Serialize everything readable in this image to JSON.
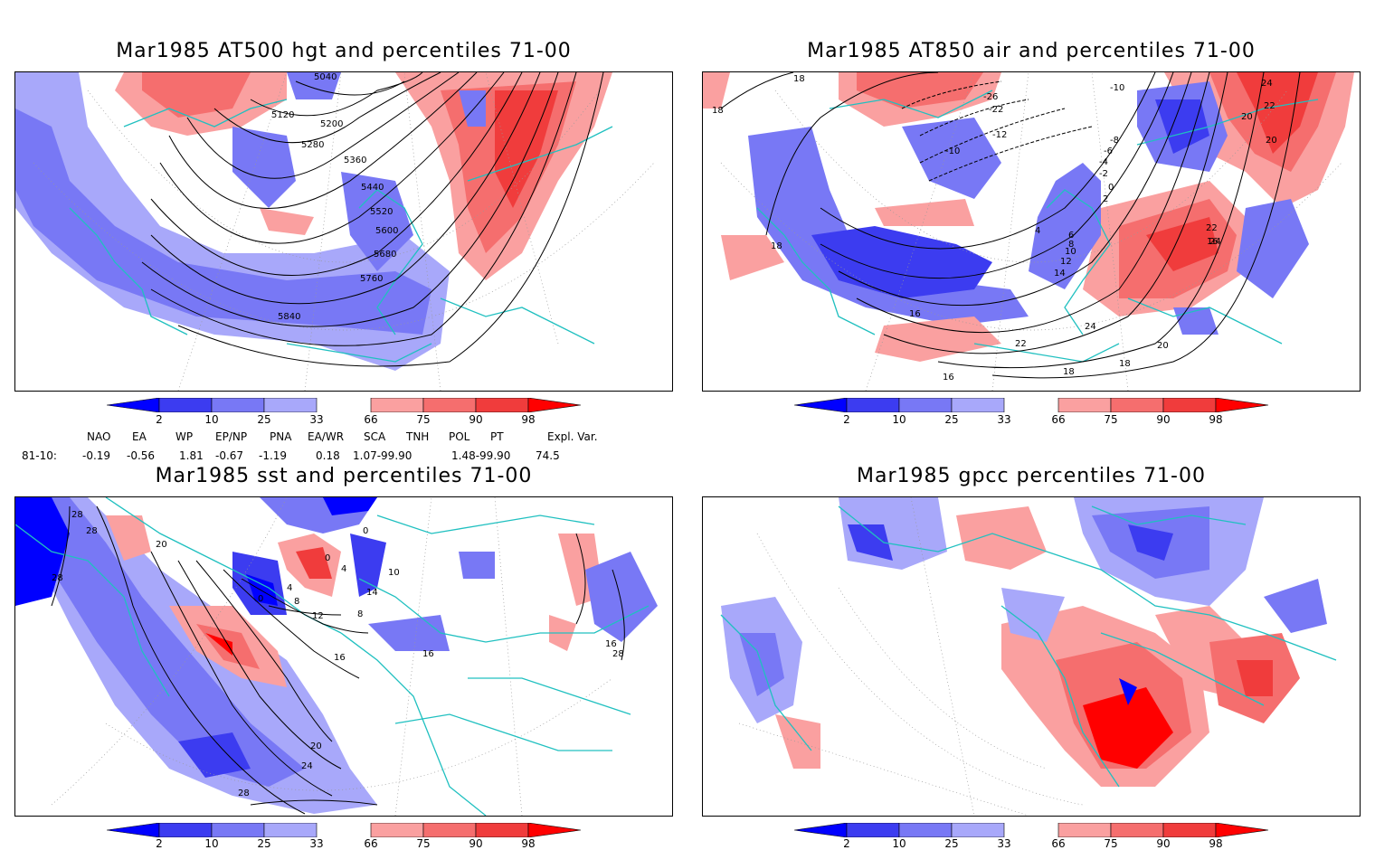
{
  "panels": [
    {
      "id": "hgt",
      "title": "Mar1985 AT500 hgt and percentiles 71-00",
      "contour_labels": [
        "5040",
        "5120",
        "5200",
        "5280",
        "5360",
        "5440",
        "5520",
        "5600",
        "5680",
        "5760",
        "5840"
      ]
    },
    {
      "id": "air",
      "title": "Mar1985 AT850 air and percentiles 71-00",
      "contour_labels": [
        "18",
        "18",
        "-10",
        "-26",
        "-22",
        "-12",
        "-10",
        "-8",
        "-6",
        "-4",
        "-2",
        "0",
        "2",
        "4",
        "6",
        "8",
        "10",
        "12",
        "14",
        "16",
        "16",
        "18",
        "18",
        "18",
        "20",
        "22",
        "22",
        "24",
        "24",
        "24",
        "20",
        "20",
        "22",
        "16"
      ]
    },
    {
      "id": "sst",
      "title": "Mar1985 sst and percentiles 71-00",
      "contour_labels": [
        "28",
        "28",
        "28",
        "20",
        "0",
        "4",
        "8",
        "12",
        "16",
        "16",
        "16",
        "20",
        "24",
        "28",
        "28",
        "0",
        "0",
        "4",
        "8",
        "10",
        "14"
      ]
    },
    {
      "id": "gpcc",
      "title": "Mar1985 gpcc percentiles 71-00",
      "contour_labels": []
    }
  ],
  "colorbar": {
    "labels": [
      "2",
      "10",
      "25",
      "33",
      "66",
      "75",
      "90",
      "98"
    ],
    "colors": {
      "blue_dark": "#0000ff",
      "blue_mid": "#3c3cf0",
      "blue_light": "#7878f5",
      "blue_pale": "#a8a8fa",
      "red_pale": "#faa0a0",
      "red_light": "#f56e6e",
      "red_mid": "#f03c3c",
      "red_dark": "#ff0000"
    }
  },
  "indices": {
    "headers": [
      "NAO",
      "EA",
      "WP",
      "EP/NP",
      "PNA",
      "EA/WR",
      "SCA",
      "TNH",
      "POL",
      "PT",
      "Expl. Var."
    ],
    "row_label": "81-10:",
    "values": [
      "-0.19",
      "-0.56",
      "1.81",
      "-0.67",
      "-1.19",
      "0.18",
      "1.07-99.90",
      "1.48-99.90",
      "74.5"
    ]
  },
  "map_colors": {
    "coast": "#20c0c0",
    "contour": "#000000",
    "grid": "#999999"
  }
}
